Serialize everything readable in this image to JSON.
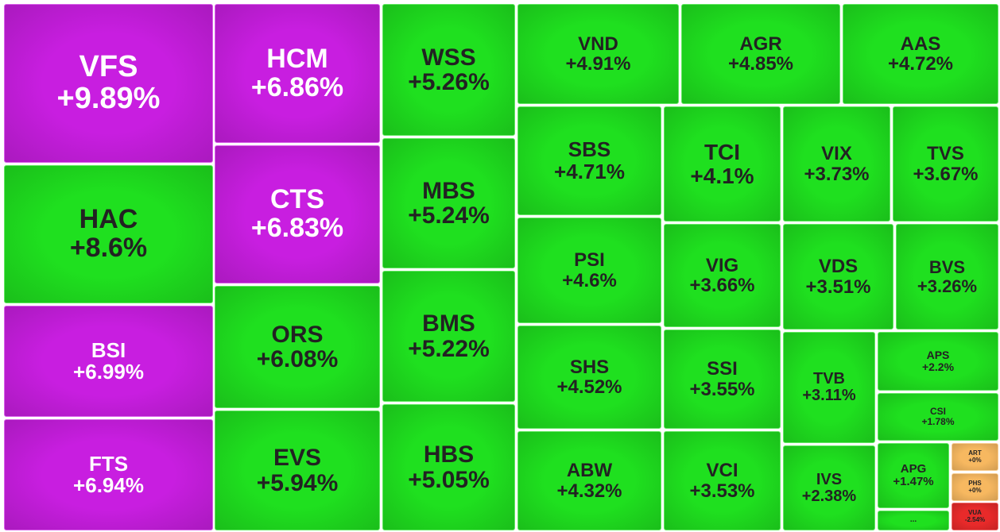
{
  "tiles": [
    {
      "symbol": "VFS",
      "change": "+9.89%",
      "color": "#c81ee0",
      "text_color": "#ffffff"
    },
    {
      "symbol": "HAC",
      "change": "+8.6%",
      "color": "#1fe01f",
      "text_color": "#222222"
    },
    {
      "symbol": "BSI",
      "change": "+6.99%",
      "color": "#c81ee0",
      "text_color": "#ffffff"
    },
    {
      "symbol": "FTS",
      "change": "+6.94%",
      "color": "#c81ee0",
      "text_color": "#ffffff"
    },
    {
      "symbol": "HCM",
      "change": "+6.86%",
      "color": "#c81ee0",
      "text_color": "#ffffff"
    },
    {
      "symbol": "CTS",
      "change": "+6.83%",
      "color": "#c81ee0",
      "text_color": "#ffffff"
    },
    {
      "symbol": "ORS",
      "change": "+6.08%",
      "color": "#1fe01f",
      "text_color": "#222222"
    },
    {
      "symbol": "EVS",
      "change": "+5.94%",
      "color": "#1fe01f",
      "text_color": "#222222"
    },
    {
      "symbol": "WSS",
      "change": "+5.26%",
      "color": "#1fe01f",
      "text_color": "#222222"
    },
    {
      "symbol": "MBS",
      "change": "+5.24%",
      "color": "#1fe01f",
      "text_color": "#222222"
    },
    {
      "symbol": "BMS",
      "change": "+5.22%",
      "color": "#1fe01f",
      "text_color": "#222222"
    },
    {
      "symbol": "HBS",
      "change": "+5.05%",
      "color": "#1fe01f",
      "text_color": "#222222"
    },
    {
      "symbol": "VND",
      "change": "+4.91%",
      "color": "#1fe01f",
      "text_color": "#222222"
    },
    {
      "symbol": "AGR",
      "change": "+4.85%",
      "color": "#1fe01f",
      "text_color": "#222222"
    },
    {
      "symbol": "AAS",
      "change": "+4.72%",
      "color": "#1fe01f",
      "text_color": "#222222"
    },
    {
      "symbol": "SBS",
      "change": "+4.71%",
      "color": "#1fe01f",
      "text_color": "#222222"
    },
    {
      "symbol": "PSI",
      "change": "+4.6%",
      "color": "#1fe01f",
      "text_color": "#222222"
    },
    {
      "symbol": "SHS",
      "change": "+4.52%",
      "color": "#1fe01f",
      "text_color": "#222222"
    },
    {
      "symbol": "ABW",
      "change": "+4.32%",
      "color": "#1fe01f",
      "text_color": "#222222"
    },
    {
      "symbol": "TCI",
      "change": "+4.1%",
      "color": "#1fe01f",
      "text_color": "#222222"
    },
    {
      "symbol": "VIG",
      "change": "+3.66%",
      "color": "#1fe01f",
      "text_color": "#222222"
    },
    {
      "symbol": "SSI",
      "change": "+3.55%",
      "color": "#1fe01f",
      "text_color": "#222222"
    },
    {
      "symbol": "VCI",
      "change": "+3.53%",
      "color": "#1fe01f",
      "text_color": "#222222"
    },
    {
      "symbol": "VIX",
      "change": "+3.73%",
      "color": "#1fe01f",
      "text_color": "#222222"
    },
    {
      "symbol": "TVS",
      "change": "+3.67%",
      "color": "#1fe01f",
      "text_color": "#222222"
    },
    {
      "symbol": "VDS",
      "change": "+3.51%",
      "color": "#1fe01f",
      "text_color": "#222222"
    },
    {
      "symbol": "BVS",
      "change": "+3.26%",
      "color": "#1fe01f",
      "text_color": "#222222"
    },
    {
      "symbol": "TVB",
      "change": "+3.11%",
      "color": "#1fe01f",
      "text_color": "#222222"
    },
    {
      "symbol": "IVS",
      "change": "+2.38%",
      "color": "#1fe01f",
      "text_color": "#222222"
    },
    {
      "symbol": "APS",
      "change": "+2.2%",
      "color": "#1fe01f",
      "text_color": "#222222"
    },
    {
      "symbol": "CSI",
      "change": "+1.78%",
      "color": "#1fe01f",
      "text_color": "#222222"
    },
    {
      "symbol": "APG",
      "change": "+1.47%",
      "color": "#1fe01f",
      "text_color": "#222222"
    },
    {
      "symbol": "...",
      "color": "#1fe01f",
      "text_color": "#222222"
    },
    {
      "symbol": "ART",
      "change": "+0%",
      "color": "#f7b860",
      "text_color": "#222222"
    },
    {
      "symbol": "PHS",
      "change": "+0%",
      "color": "#f7b860",
      "text_color": "#222222"
    },
    {
      "symbol": "VUA",
      "change": "-2.54%",
      "color": "#e82a2a",
      "text_color": "#222222"
    }
  ]
}
